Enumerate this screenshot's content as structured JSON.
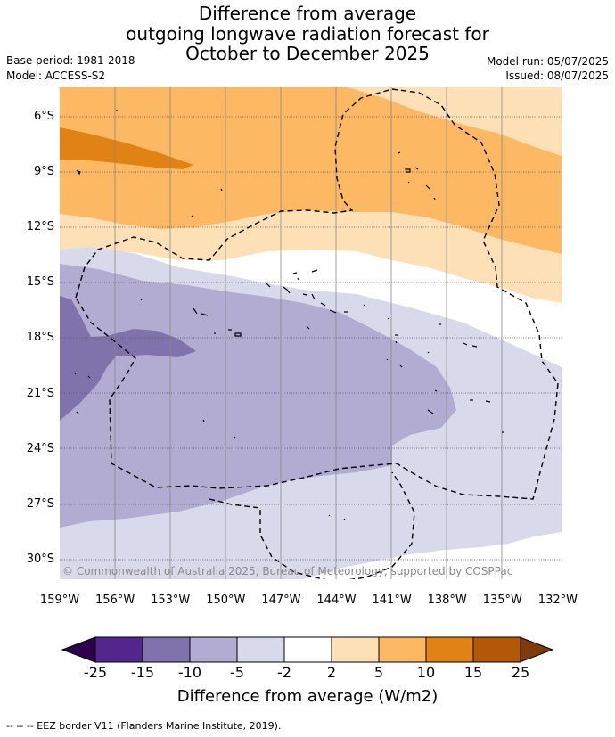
{
  "title": {
    "line1": "Difference from average",
    "line2": "outgoing longwave radiation forecast for",
    "line3": "October to December 2025"
  },
  "meta": {
    "base_period": "Base period: 1981-2018",
    "model": "Model: ACCESS-S2",
    "model_run": "Model run: 05/07/2025",
    "issued": "Issued: 08/07/2025"
  },
  "axes": {
    "lat_ticks": [
      "6°S",
      "9°S",
      "12°S",
      "15°S",
      "18°S",
      "21°S",
      "24°S",
      "27°S",
      "30°S"
    ],
    "lon_ticks": [
      "159°W",
      "156°W",
      "153°W",
      "150°W",
      "147°W",
      "144°W",
      "141°W",
      "138°W",
      "135°W",
      "132°W"
    ]
  },
  "copyright": "© Commonwealth of Australia 2025, Bureau of Meteorology, supported by COSPPac",
  "colorbar": {
    "labels": [
      "-25",
      "-15",
      "-10",
      "-5",
      "-2",
      "2",
      "5",
      "10",
      "15",
      "25"
    ],
    "colors": [
      "#54278f",
      "#8073ac",
      "#b2abd2",
      "#d8daeb",
      "#ffffff",
      "#fee0b6",
      "#fdb863",
      "#e08214",
      "#b35806"
    ],
    "low_extend_color": "#2d004b",
    "high_extend_color": "#7f3b08",
    "title": "Difference from average (W/m2)"
  },
  "footer": "--  --  -- EEZ border V11 (Flanders Marine Institute, 2019)."
}
